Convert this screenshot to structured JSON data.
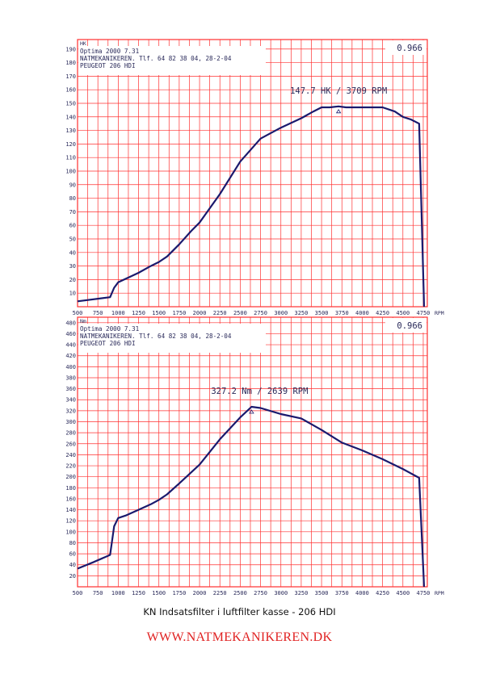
{
  "caption": "KN Indsatsfilter i luftfilter kasse - 206 HDI",
  "footer_url": "WWW.NATMEKANIKEREN.DK",
  "colors": {
    "grid": "#ff3030",
    "curve": "#1a1a6e",
    "text": "#2a2a5a"
  },
  "chart_data": [
    {
      "type": "line",
      "unit_label": "HK",
      "header_lines": [
        "Optima 2000 7.31",
        "NATMEKANIKEREN. Tlf. 64 82 38 04, 28-2-04",
        "PEUGEOT 206 HDI"
      ],
      "corner_value": "0.966",
      "annotation": "147.7 HK / 3709 RPM",
      "peak": {
        "x": 3709,
        "y": 147.7
      },
      "xlabel": "RPM",
      "x_ticks": [
        500,
        750,
        1000,
        1250,
        1500,
        1750,
        2000,
        2250,
        2500,
        2750,
        3000,
        3250,
        3500,
        3750,
        4000,
        4250,
        4500,
        4750
      ],
      "y_ticks": [
        10,
        20,
        30,
        40,
        50,
        60,
        70,
        80,
        90,
        100,
        110,
        120,
        130,
        140,
        150,
        160,
        170,
        180,
        190
      ],
      "xlim": [
        500,
        4800
      ],
      "ylim": [
        0,
        197
      ],
      "grid": true,
      "series": [
        {
          "x": [
            500,
            900,
            950,
            1000,
            1250,
            1400,
            1500,
            1600,
            1750,
            1900,
            2000,
            2250,
            2500,
            2750,
            3000,
            3250,
            3400,
            3500,
            3600,
            3709,
            3800,
            4000,
            4250,
            4400,
            4500,
            4600,
            4700,
            4760
          ],
          "y": [
            4,
            7,
            14,
            18,
            25,
            30,
            33,
            37,
            46,
            56,
            62,
            83,
            107,
            124,
            132,
            139,
            144,
            147,
            147,
            147.7,
            147,
            147,
            147,
            144,
            140,
            138,
            135,
            0
          ]
        }
      ]
    },
    {
      "type": "line",
      "unit_label": "Nm",
      "header_lines": [
        "Optima 2000 7.31",
        "NATMEKANIKEREN. Tlf. 64 82 38 04, 28-2-04",
        "PEUGEOT 206 HDI"
      ],
      "corner_value": "0.966",
      "annotation": "327.2 Nm / 2639 RPM",
      "peak": {
        "x": 2639,
        "y": 327.2
      },
      "xlabel": "RPM",
      "x_ticks": [
        500,
        750,
        1000,
        1250,
        1500,
        1750,
        2000,
        2250,
        2500,
        2750,
        3000,
        3250,
        3500,
        3750,
        4000,
        4250,
        4500,
        4750
      ],
      "y_ticks": [
        20,
        40,
        60,
        80,
        100,
        120,
        140,
        160,
        180,
        200,
        220,
        240,
        260,
        280,
        300,
        320,
        340,
        360,
        380,
        400,
        420,
        440,
        460,
        480
      ],
      "xlim": [
        500,
        4800
      ],
      "ylim": [
        0,
        490
      ],
      "grid": true,
      "series": [
        {
          "x": [
            500,
            700,
            900,
            950,
            1000,
            1100,
            1250,
            1400,
            1500,
            1600,
            1750,
            2000,
            2250,
            2500,
            2639,
            2750,
            3000,
            3250,
            3500,
            3750,
            4000,
            4250,
            4500,
            4700,
            4760
          ],
          "y": [
            33,
            45,
            58,
            110,
            125,
            130,
            140,
            150,
            158,
            168,
            188,
            222,
            268,
            308,
            327.2,
            325,
            314,
            306,
            285,
            262,
            248,
            232,
            214,
            198,
            0
          ]
        }
      ]
    }
  ]
}
